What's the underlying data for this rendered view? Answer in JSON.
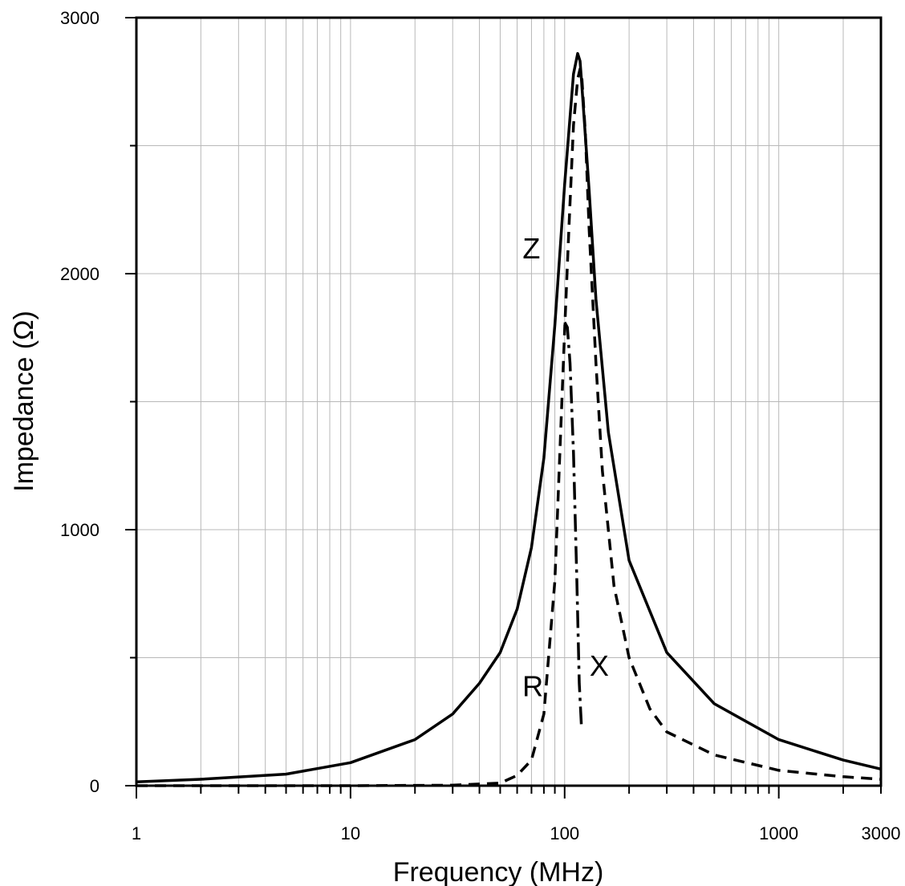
{
  "chart_data": {
    "type": "line",
    "title": "",
    "xlabel": "Frequency (MHz)",
    "ylabel": "Impedance (Ω)",
    "xscale": "log",
    "xlim": [
      1,
      3000
    ],
    "ylim": [
      0,
      3000
    ],
    "grid": true,
    "legend": "none",
    "x_tick_labels": [
      "1",
      "10",
      "100",
      "1000",
      "3000"
    ],
    "x_tick_values": [
      1,
      10,
      100,
      1000,
      3000
    ],
    "y_tick_labels": [
      "0",
      "1000",
      "2000",
      "3000"
    ],
    "y_tick_values": [
      0,
      1000,
      2000,
      3000
    ],
    "series": [
      {
        "name": "Z",
        "style": "solid",
        "x": [
          1,
          2,
          5,
          10,
          20,
          30,
          40,
          50,
          60,
          70,
          80,
          90,
          100,
          110,
          115,
          118,
          120,
          130,
          140,
          160,
          200,
          300,
          500,
          1000,
          2000,
          3000
        ],
        "y": [
          15,
          25,
          45,
          90,
          180,
          280,
          400,
          520,
          690,
          930,
          1280,
          1800,
          2350,
          2780,
          2860,
          2830,
          2750,
          2330,
          1900,
          1380,
          880,
          520,
          320,
          180,
          100,
          65
        ]
      },
      {
        "name": "R",
        "style": "dashed",
        "x": [
          1,
          10,
          30,
          50,
          60,
          70,
          80,
          90,
          95,
          100,
          105,
          110,
          115,
          118,
          120,
          125,
          130,
          140,
          150,
          170,
          200,
          250,
          300,
          500,
          1000,
          2000,
          3000
        ],
        "y": [
          0,
          0,
          2,
          10,
          40,
          100,
          280,
          800,
          1300,
          1780,
          2200,
          2580,
          2760,
          2800,
          2780,
          2550,
          2180,
          1650,
          1230,
          780,
          500,
          300,
          210,
          120,
          60,
          35,
          25
        ]
      },
      {
        "name": "X",
        "style": "dash-dot",
        "x": [
          100,
          103,
          106,
          110,
          114,
          117,
          120
        ],
        "y": [
          1810,
          1790,
          1650,
          1300,
          800,
          400,
          220
        ]
      }
    ],
    "annotations": [
      {
        "text": "Z",
        "x": 70,
        "y": 2060
      },
      {
        "text": "R",
        "x": 71,
        "y": 350
      },
      {
        "text": "X",
        "x": 145,
        "y": 430
      }
    ]
  }
}
